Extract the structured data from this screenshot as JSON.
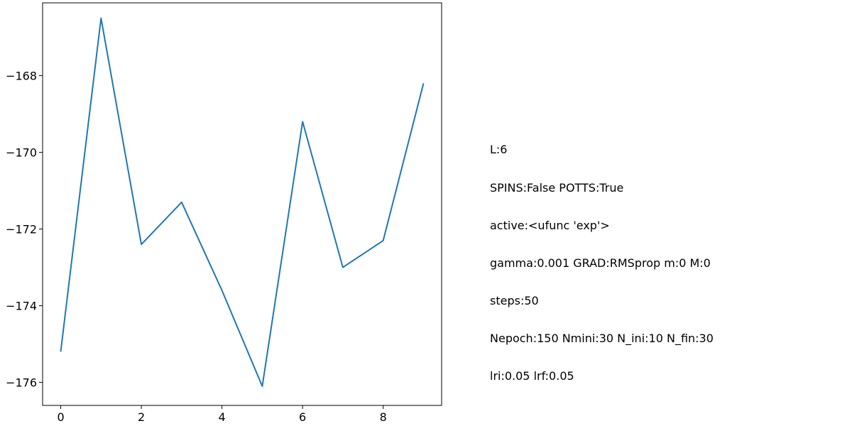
{
  "chart_data": {
    "type": "line",
    "x": [
      0,
      1,
      2,
      3,
      4,
      5,
      6,
      7,
      8,
      9
    ],
    "series": [
      {
        "values": [
          -175.2,
          -166.5,
          -172.4,
          -171.3,
          -173.6,
          -176.1,
          -169.2,
          -173.0,
          -172.3,
          -168.2
        ],
        "color": "#1f77b4"
      }
    ],
    "xlim": [
      -0.45,
      9.45
    ],
    "ylim": [
      -176.6,
      -166.1
    ],
    "xticks": [
      0,
      2,
      4,
      6,
      8
    ],
    "yticks": [
      -168,
      -170,
      -172,
      -174,
      -176
    ],
    "xtick_labels": [
      "0",
      "2",
      "4",
      "6",
      "8"
    ],
    "ytick_labels": [
      "−168",
      "−170",
      "−172",
      "−174",
      "−176"
    ],
    "grid": false
  },
  "annotation": {
    "lines": [
      "L:6",
      "SPINS:False POTTS:True",
      "active:<ufunc 'exp'>",
      "gamma:0.001 GRAD:RMSprop m:0 M:0",
      "steps:50",
      "Nepoch:150 Nmini:30 N_ini:10 N_fin:30",
      "lri:0.05 lrf:0.05"
    ]
  }
}
